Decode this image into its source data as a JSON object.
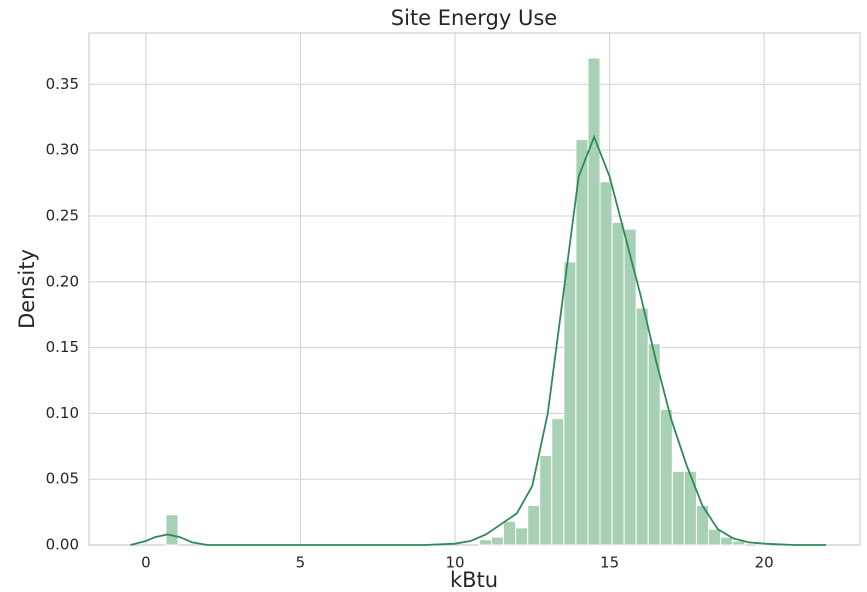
{
  "chart_data": {
    "type": "histogram",
    "title": "Site Energy Use",
    "xlabel": "kBtu",
    "ylabel": "Density",
    "bins": [
      0.65,
      1.04,
      1.43,
      1.82,
      2.21,
      2.6,
      2.99,
      3.38,
      3.77,
      4.16,
      4.55,
      4.94,
      5.33,
      5.72,
      6.11,
      6.5,
      6.89,
      7.28,
      7.67,
      8.06,
      8.45,
      8.84,
      9.23,
      9.62,
      10.01,
      10.4,
      10.79,
      11.18,
      11.57,
      11.96,
      12.35,
      12.74,
      13.13,
      13.52,
      13.91,
      14.3,
      14.69,
      15.08,
      15.47,
      15.86,
      16.25,
      16.64,
      17.03,
      17.42,
      17.81,
      18.2,
      18.59,
      18.98,
      19.37,
      19.76,
      20.15
    ],
    "counts": [
      0.023,
      0,
      0,
      0,
      0,
      0,
      0,
      0,
      0,
      0,
      0,
      0,
      0,
      0,
      0,
      0,
      0,
      0,
      0,
      0,
      0,
      0,
      0,
      0,
      0,
      0,
      0.004,
      0.006,
      0.018,
      0.013,
      0.03,
      0.068,
      0.096,
      0.215,
      0.308,
      0.37,
      0.276,
      0.245,
      0.24,
      0.18,
      0.153,
      0.103,
      0.056,
      0.056,
      0.03,
      0.012,
      0.006,
      0.003,
      0,
      0.001
    ],
    "color": "#a8d0b5",
    "kde": {
      "color": "#2e8b57",
      "x": [
        -0.5,
        0,
        0.3,
        0.7,
        1.1,
        1.5,
        2,
        9,
        10,
        10.5,
        11,
        11.5,
        12,
        12.5,
        13,
        13.5,
        14,
        14.5,
        15,
        15.5,
        16,
        16.5,
        17,
        17.5,
        18,
        18.5,
        19,
        19.5,
        20,
        21,
        22
      ],
      "y": [
        0,
        0.003,
        0.006,
        0.008,
        0.006,
        0.002,
        0,
        0,
        0.001,
        0.003,
        0.008,
        0.016,
        0.024,
        0.045,
        0.1,
        0.19,
        0.28,
        0.31,
        0.28,
        0.235,
        0.19,
        0.14,
        0.095,
        0.06,
        0.03,
        0.012,
        0.005,
        0.002,
        0.001,
        0,
        0
      ]
    },
    "xlim": [
      -1.84,
      23.1
    ],
    "ylim": [
      0,
      0.389
    ],
    "xticks": [
      0,
      5,
      10,
      15,
      20
    ],
    "yticks": [
      {
        "value": 0,
        "label": "0.00"
      },
      {
        "value": 0.05,
        "label": "0.05"
      },
      {
        "value": 0.1,
        "label": "0.10"
      },
      {
        "value": 0.15,
        "label": "0.15"
      },
      {
        "value": 0.2,
        "label": "0.20"
      },
      {
        "value": 0.25,
        "label": "0.25"
      },
      {
        "value": 0.3,
        "label": "0.30"
      },
      {
        "value": 0.35,
        "label": "0.35"
      }
    ],
    "grid": true
  }
}
